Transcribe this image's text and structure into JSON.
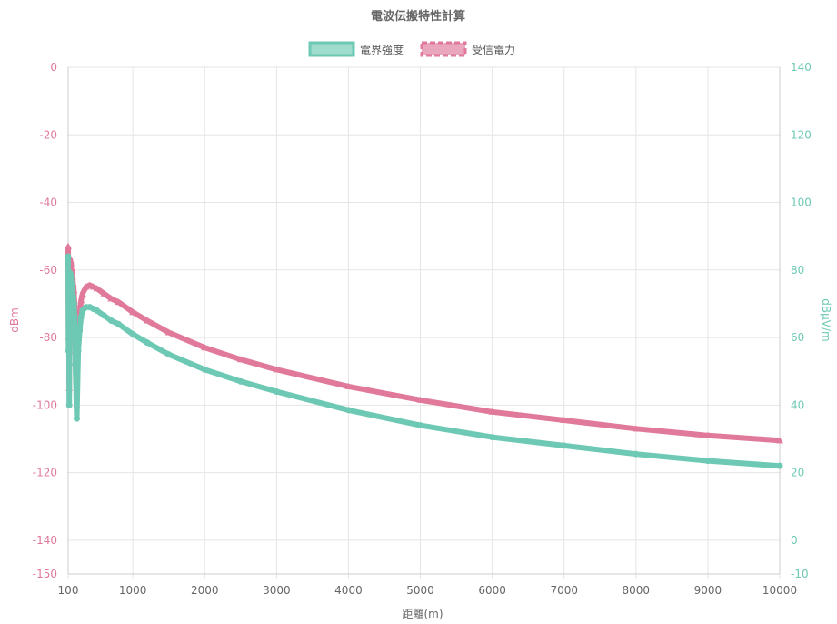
{
  "chart_data": {
    "type": "line",
    "title": "電波伝搬特性計算",
    "xlabel": "距離(m)",
    "ylabel_left": "dBm",
    "ylabel_right": "dBμV/m",
    "x_ticks": [
      100,
      1000,
      2000,
      3000,
      4000,
      5000,
      6000,
      7000,
      8000,
      9000,
      10000
    ],
    "xlim": [
      100,
      10000
    ],
    "y_left_ticks": [
      0,
      -20,
      -40,
      -60,
      -80,
      -100,
      -120,
      -140,
      -150
    ],
    "y_left_lim": [
      -150,
      0
    ],
    "y_right_ticks": [
      140,
      120,
      100,
      80,
      60,
      40,
      20,
      0,
      -10
    ],
    "y_right_lim": [
      -10,
      140
    ],
    "grid": true,
    "legend_position": "top",
    "series": [
      {
        "name": "電界強度",
        "axis": "right",
        "color": "#6dc9b4",
        "marker": "circle",
        "x": [
          100,
          105,
          110,
          115,
          120,
          125,
          130,
          135,
          140,
          145,
          150,
          155,
          160,
          170,
          180,
          190,
          200,
          220,
          240,
          260,
          280,
          300,
          350,
          400,
          450,
          500,
          600,
          700,
          800,
          1000,
          1200,
          1500,
          2000,
          2500,
          3000,
          4000,
          5000,
          6000,
          7000,
          8000,
          9000,
          10000
        ],
        "values": [
          84,
          56,
          78,
          40,
          76,
          62,
          79,
          72,
          78,
          70,
          76,
          60,
          74,
          72,
          70,
          66,
          52,
          36,
          56,
          62,
          66,
          68,
          69,
          69,
          68.5,
          68,
          66.5,
          65,
          64,
          61,
          58.5,
          55,
          50.5,
          47,
          44,
          38.5,
          34,
          30.5,
          28,
          25.5,
          23.5,
          22
        ]
      },
      {
        "name": "受信電力",
        "axis": "left",
        "color": "#e0799a",
        "marker": "triangle",
        "x": [
          100,
          105,
          110,
          115,
          120,
          125,
          130,
          135,
          140,
          145,
          150,
          155,
          160,
          170,
          180,
          190,
          200,
          220,
          240,
          260,
          280,
          300,
          350,
          400,
          450,
          500,
          600,
          700,
          800,
          1000,
          1200,
          1500,
          2000,
          2500,
          3000,
          4000,
          5000,
          6000,
          7000,
          8000,
          9000,
          10000
        ],
        "values": [
          -53,
          -80,
          -58,
          -95,
          -60,
          -70,
          -57,
          -64,
          -58,
          -66,
          -60,
          -75,
          -62,
          -64,
          -66,
          -70,
          -84,
          -100,
          -79,
          -73,
          -69,
          -67,
          -65,
          -64.5,
          -65,
          -65.5,
          -67,
          -68.5,
          -69.5,
          -72.5,
          -75,
          -78.5,
          -83,
          -86.5,
          -89.5,
          -94.5,
          -98.5,
          -102,
          -104.5,
          -107,
          -109,
          -110.5
        ]
      }
    ]
  }
}
